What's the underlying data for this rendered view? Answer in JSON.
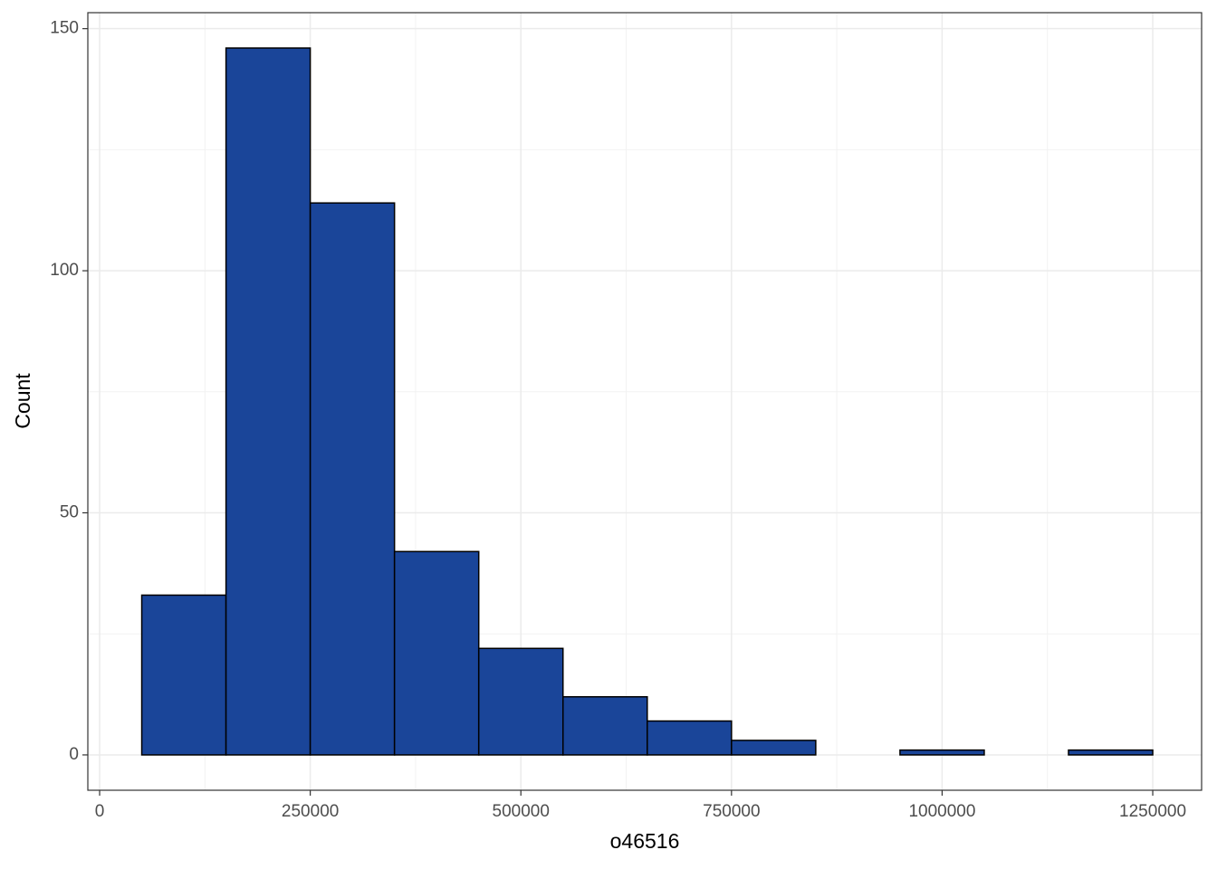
{
  "chart_data": {
    "type": "histogram",
    "x_label": "o46516",
    "y_label": "Count",
    "bins": [
      50000,
      150000,
      250000,
      350000,
      450000,
      550000,
      650000,
      750000,
      850000,
      950000,
      1050000,
      1150000,
      1250000
    ],
    "values": [
      33,
      146,
      114,
      42,
      22,
      12,
      7,
      3,
      0,
      1,
      0,
      1
    ],
    "color": "#1a4599",
    "xlim": [
      -14000,
      1308000
    ],
    "ylim": [
      -7.3,
      153.3
    ],
    "xticks": [
      0,
      250000,
      500000,
      750000,
      1000000,
      1250000
    ],
    "yticks": [
      0,
      50,
      100,
      150
    ],
    "x_minor_ticks": [
      125000,
      375000,
      625000,
      875000,
      1125000
    ],
    "y_minor_ticks": [
      25,
      75,
      125
    ],
    "grid": true
  }
}
